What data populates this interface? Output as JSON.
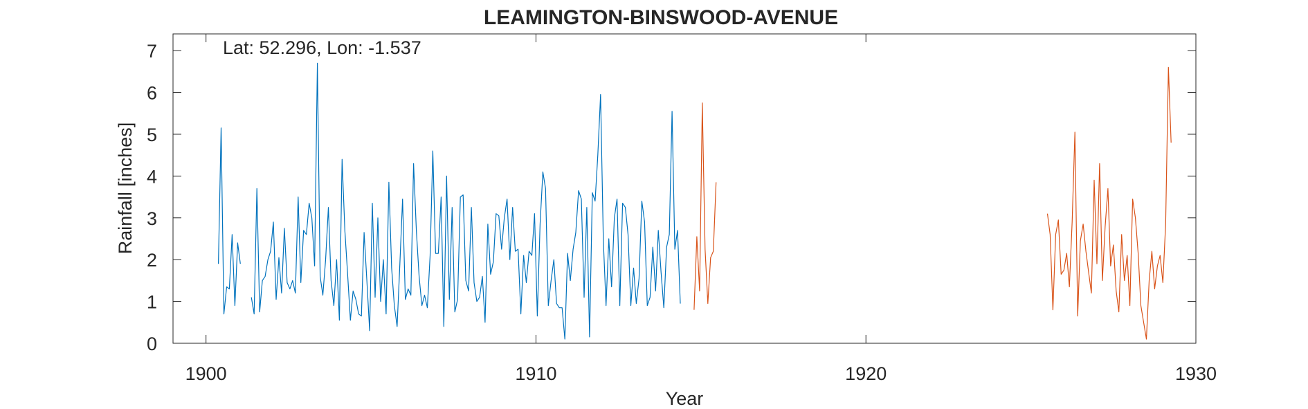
{
  "chart_data": {
    "type": "line",
    "title": "LEAMINGTON-BINSWOOD-AVENUE",
    "xlabel": "Year",
    "ylabel": "Rainfall [inches]",
    "annotation": "Lat: 52.296, Lon: -1.537",
    "xlim": [
      1899,
      1930
    ],
    "ylim": [
      0,
      7.4
    ],
    "x_ticks": [
      1900,
      1910,
      1920,
      1930
    ],
    "y_ticks": [
      0,
      1,
      2,
      3,
      4,
      5,
      6,
      7
    ],
    "grid": false,
    "series": [
      {
        "color": "#0072BD",
        "segments": [
          {
            "x_start": 1900.375,
            "x_step": 0.08333,
            "y": [
              1.9,
              5.15,
              0.7,
              1.35,
              1.3,
              2.6,
              0.9,
              2.4,
              1.9
            ]
          },
          {
            "x_start": 1901.375,
            "x_step": 0.08333,
            "y": [
              1.1,
              0.7,
              3.7,
              0.75,
              1.5,
              1.6,
              2.0,
              2.2,
              2.9,
              1.05,
              2.05,
              1.2,
              2.75,
              1.45,
              1.3,
              1.5,
              1.2,
              3.5,
              1.45,
              2.7,
              2.6,
              3.35,
              3.0,
              1.85,
              6.7,
              1.6,
              1.15,
              2.0,
              3.25,
              1.5,
              0.9,
              2.0,
              0.55,
              4.4,
              2.7,
              1.65,
              0.55,
              1.25,
              1.05,
              0.7,
              0.65,
              2.65,
              1.5,
              0.3,
              3.35,
              1.1,
              3.0,
              1.0,
              2.0,
              0.7,
              3.85,
              1.8,
              0.9,
              0.4,
              1.9,
              3.45,
              1.05,
              1.3,
              1.15,
              4.3,
              2.7,
              1.6,
              0.9,
              1.15,
              0.85,
              2.1,
              4.6,
              2.15,
              2.15,
              3.5,
              0.4,
              4.0,
              1.05,
              3.25,
              0.75,
              1.05,
              3.5,
              3.55,
              1.5,
              1.25,
              3.25,
              1.45,
              1.0,
              1.1,
              1.6,
              0.5,
              2.85,
              1.65,
              1.95,
              3.1,
              3.05,
              2.25,
              3.0,
              3.45,
              2.0,
              3.25,
              2.2,
              2.25,
              0.7,
              2.1,
              1.45,
              2.2,
              2.1,
              3.1,
              0.65,
              2.85,
              4.1,
              3.7,
              0.9,
              1.5,
              2.0,
              0.95,
              0.85,
              0.85,
              0.1,
              2.15,
              1.5,
              2.25,
              2.65,
              3.65,
              3.45,
              1.1,
              3.25,
              0.15,
              3.6,
              3.4,
              4.5,
              5.95,
              2.45,
              0.9,
              2.5,
              1.35,
              3.0,
              3.45,
              0.9,
              3.35,
              3.25,
              2.6,
              0.9,
              1.8,
              0.95,
              1.55,
              3.4,
              2.9,
              0.9,
              1.1,
              2.3,
              1.25,
              2.7,
              1.7,
              0.85,
              2.3,
              2.6,
              5.55,
              2.25,
              2.7,
              0.95
            ]
          }
        ]
      },
      {
        "color": "#D95319",
        "segments": [
          {
            "x_start": 1914.792,
            "x_step": 0.08333,
            "y": [
              0.8,
              2.55,
              1.25,
              5.75,
              2.25,
              0.95,
              2.05,
              2.2,
              3.85
            ]
          },
          {
            "x_start": 1925.5,
            "x_step": 0.08333,
            "y": [
              3.1,
              2.6,
              0.8,
              2.6,
              2.95,
              1.65,
              1.75,
              2.15,
              1.35,
              2.9,
              5.05,
              0.65,
              2.45,
              2.85,
              2.2,
              1.7,
              1.2,
              3.9,
              1.9,
              4.3,
              1.5,
              2.8,
              3.7,
              1.85,
              2.35,
              1.25,
              0.75,
              2.6,
              1.5,
              2.1,
              0.9,
              3.45,
              3.0,
              2.15,
              0.9,
              0.5,
              0.1,
              1.5,
              2.2,
              1.3,
              1.85,
              2.1,
              1.45,
              2.85,
              6.6,
              4.8
            ]
          }
        ]
      }
    ]
  }
}
